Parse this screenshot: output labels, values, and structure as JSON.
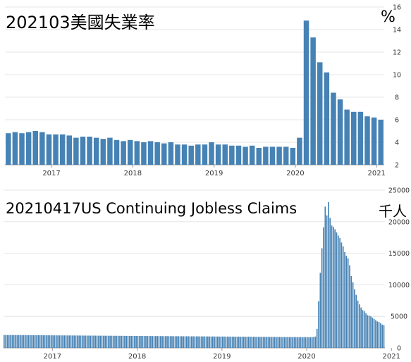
{
  "chart_data": [
    {
      "type": "bar",
      "title": "202103美國失業率",
      "unit": "%",
      "ylim": [
        2,
        16
      ],
      "yticks": [
        "16",
        "14",
        "12",
        "10",
        "8",
        "6",
        "4",
        "2"
      ],
      "xticks": [
        "2017",
        "2018",
        "2019",
        "2020",
        "2021"
      ],
      "color": "#4682b4",
      "values": [
        4.8,
        4.9,
        4.8,
        4.9,
        5.0,
        4.9,
        4.7,
        4.7,
        4.7,
        4.6,
        4.4,
        4.5,
        4.5,
        4.4,
        4.3,
        4.4,
        4.2,
        4.1,
        4.2,
        4.1,
        4.0,
        4.1,
        4.0,
        3.9,
        4.0,
        3.8,
        3.8,
        3.7,
        3.8,
        3.8,
        4.0,
        3.8,
        3.8,
        3.7,
        3.7,
        3.6,
        3.7,
        3.5,
        3.6,
        3.6,
        3.6,
        3.6,
        3.5,
        4.4,
        14.8,
        13.3,
        11.1,
        10.2,
        8.4,
        7.8,
        6.9,
        6.7,
        6.7,
        6.3,
        6.2,
        6.0
      ]
    },
    {
      "type": "bar",
      "title": "20210417US Continuing Jobless Claims",
      "unit": "千人",
      "ylim": [
        0,
        25000
      ],
      "yticks": [
        "25000",
        "20000",
        "15000",
        "10000",
        "5000",
        "0"
      ],
      "xticks": [
        "2017",
        "2018",
        "2019",
        "2020",
        "2021"
      ],
      "color": "#4682b4",
      "weekly_start_2017": 2050,
      "weekly_end_2020_03": 1700,
      "spike": [
        1750,
        1800,
        3030,
        7400,
        11900,
        15800,
        19100,
        22400,
        21000,
        23100,
        20600,
        19400,
        19200,
        18800,
        18300,
        17800,
        17400,
        16700,
        16100,
        15200,
        14600,
        14200,
        13100,
        11400,
        10400,
        9300,
        8400,
        7500,
        6900,
        6400,
        6000,
        5800,
        5500,
        5200,
        5100,
        5000,
        4800,
        4600,
        4400,
        4200,
        4100,
        3900,
        3700,
        3600
      ]
    }
  ]
}
